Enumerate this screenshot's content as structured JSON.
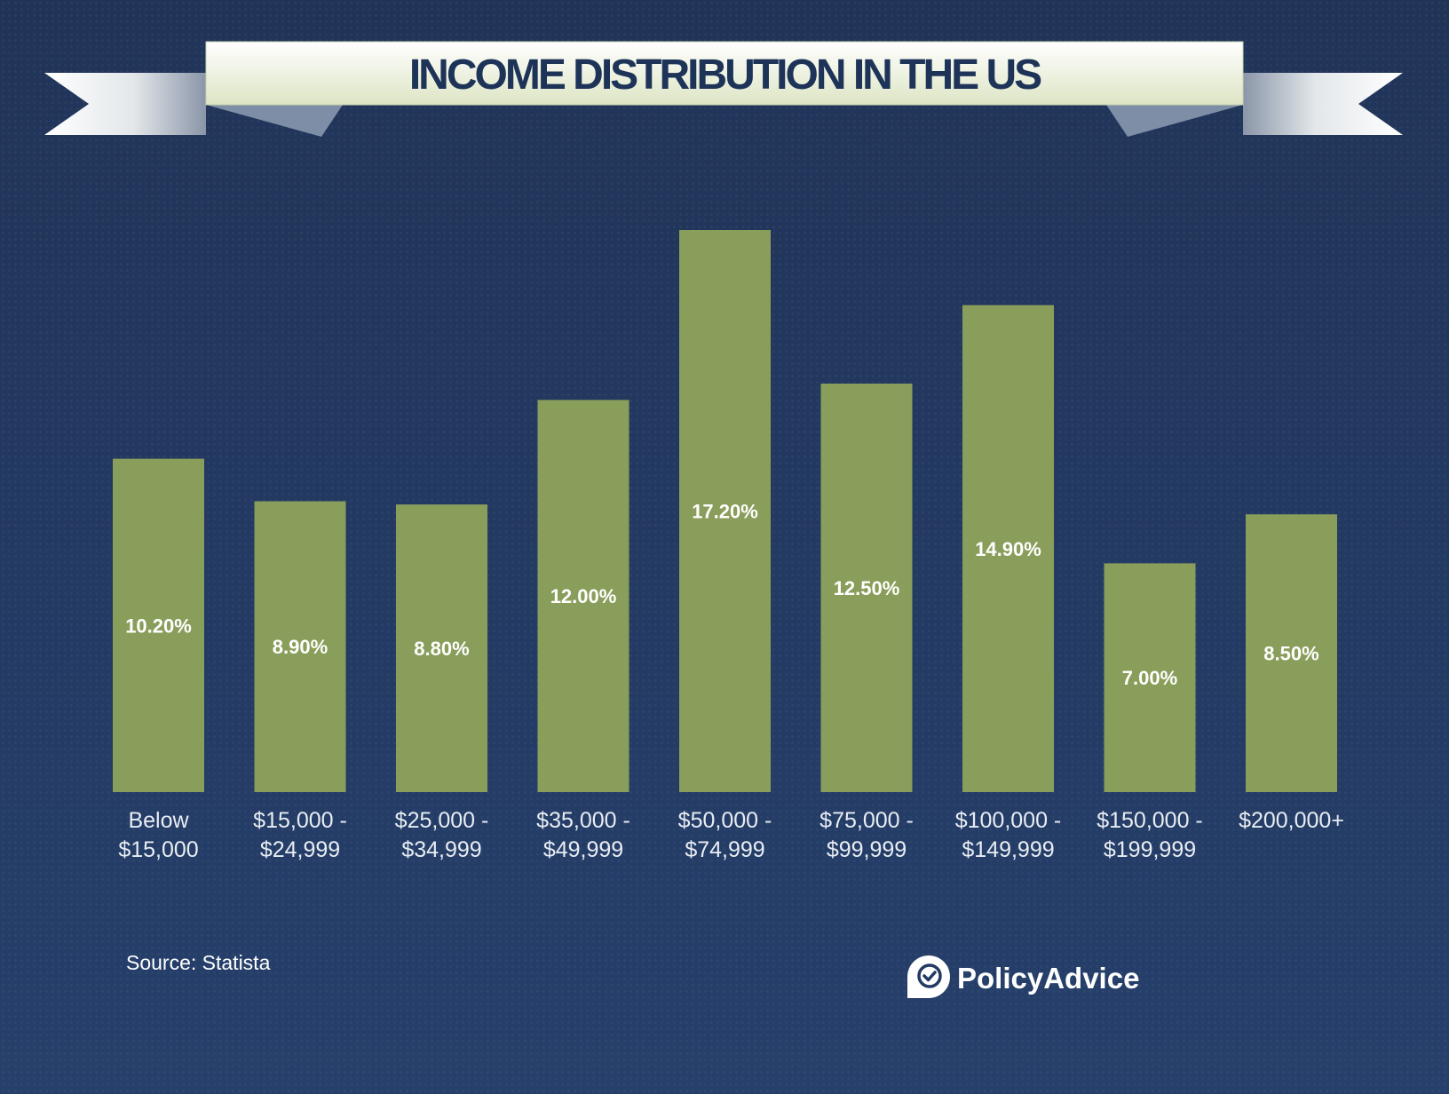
{
  "title": "INCOME DISTRIBUTION IN THE US",
  "source": "Source: Statista",
  "brand": {
    "name": "PolicyAdvice",
    "logo_icon": "chat-check-icon"
  },
  "colors": {
    "background": "#233a63",
    "bar": "#8a9e5b",
    "title_text": "#1e3358",
    "label_text": "#ffffff"
  },
  "chart_data": {
    "type": "bar",
    "title": "INCOME DISTRIBUTION IN THE US",
    "xlabel": "",
    "ylabel": "",
    "grid": false,
    "legend": "none",
    "categories": [
      [
        "Below",
        "$15,000"
      ],
      [
        "$15,000 -",
        "$24,999"
      ],
      [
        "$25,000 -",
        "$34,999"
      ],
      [
        "$35,000 -",
        "$49,999"
      ],
      [
        "$50,000 -",
        "$74,999"
      ],
      [
        "$75,000 -",
        "$99,999"
      ],
      [
        "$100,000 -",
        "$149,999"
      ],
      [
        "$150,000 -",
        "$199,999"
      ],
      [
        "$200,000+"
      ]
    ],
    "values": [
      10.2,
      8.9,
      8.8,
      12.0,
      17.2,
      12.5,
      14.9,
      7.0,
      8.5
    ],
    "value_labels": [
      "10.20%",
      "8.90%",
      "8.80%",
      "12.00%",
      "17.20%",
      "12.50%",
      "14.90%",
      "7.00%",
      "8.50%"
    ],
    "ylim": [
      0,
      17.2
    ]
  }
}
